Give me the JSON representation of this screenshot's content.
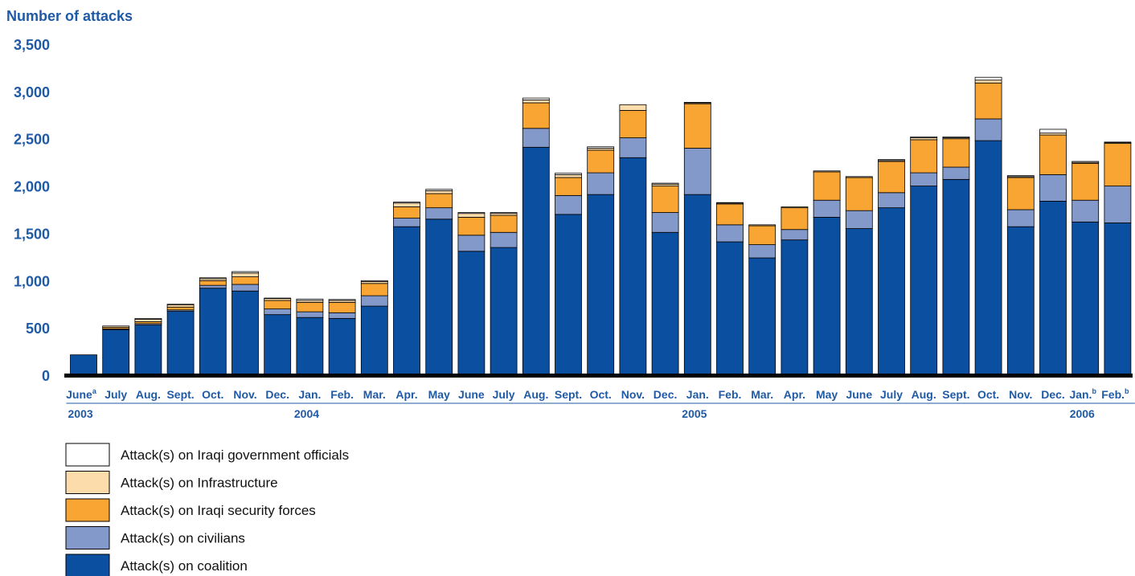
{
  "chart_data": {
    "type": "bar",
    "stacked": true,
    "ylabel": "Number of attacks",
    "ylim": [
      0,
      3500
    ],
    "yticks": [
      0,
      500,
      1000,
      1500,
      2000,
      2500,
      3000,
      3500
    ],
    "ytick_labels": [
      "0",
      "500",
      "1,000",
      "1,500",
      "2,000",
      "2,500",
      "3,000",
      "3,500"
    ],
    "categories": [
      "June",
      "July",
      "Aug.",
      "Sept.",
      "Oct.",
      "Nov.",
      "Dec.",
      "Jan.",
      "Feb.",
      "Mar.",
      "Apr.",
      "May",
      "June",
      "July",
      "Aug.",
      "Sept.",
      "Oct.",
      "Nov.",
      "Dec.",
      "Jan.",
      "Feb.",
      "Mar.",
      "Apr.",
      "May",
      "June",
      "July",
      "Aug.",
      "Sept.",
      "Oct.",
      "Nov.",
      "Dec.",
      "Jan.",
      "Feb."
    ],
    "category_notes": [
      "a",
      "",
      "",
      "",
      "",
      "",
      "",
      "",
      "",
      "",
      "",
      "",
      "",
      "",
      "",
      "",
      "",
      "",
      "",
      "",
      "",
      "",
      "",
      "",
      "",
      "",
      "",
      "",
      "",
      "",
      "",
      "b",
      "b"
    ],
    "year_groups": [
      {
        "label": "2003",
        "start": 0,
        "end": 6
      },
      {
        "label": "2004",
        "start": 7,
        "end": 18
      },
      {
        "label": "2005",
        "start": 19,
        "end": 30
      },
      {
        "label": "2006",
        "start": 31,
        "end": 32
      }
    ],
    "series": [
      {
        "name": "Attack(s) on coalition",
        "color": "#0b4fa1",
        "values": [
          215,
          480,
          530,
          675,
          920,
          890,
          640,
          610,
          600,
          730,
          1570,
          1650,
          1310,
          1350,
          2410,
          1700,
          1910,
          2300,
          1510,
          1910,
          1410,
          1240,
          1430,
          1670,
          1550,
          1770,
          2000,
          2070,
          2480,
          1570,
          1840,
          1620,
          1610
        ]
      },
      {
        "name": "Attack(s) on civilians",
        "color": "#8399c9",
        "values": [
          0,
          10,
          15,
          15,
          30,
          70,
          60,
          60,
          60,
          110,
          90,
          120,
          170,
          160,
          200,
          200,
          230,
          210,
          210,
          490,
          180,
          140,
          110,
          180,
          190,
          160,
          140,
          130,
          230,
          180,
          280,
          230,
          390
        ]
      },
      {
        "name": "Attack(s) on Iraqi security forces",
        "color": "#f9a533",
        "values": [
          0,
          15,
          20,
          30,
          50,
          80,
          90,
          100,
          110,
          130,
          120,
          150,
          190,
          180,
          270,
          190,
          240,
          290,
          280,
          470,
          220,
          200,
          230,
          300,
          350,
          330,
          350,
          300,
          380,
          340,
          420,
          390,
          450
        ]
      },
      {
        "name": "Attack(s) on Infrastructure",
        "color": "#fddcac",
        "values": [
          0,
          15,
          25,
          25,
          20,
          40,
          20,
          20,
          20,
          20,
          40,
          30,
          40,
          20,
          30,
          30,
          20,
          60,
          20,
          10,
          10,
          10,
          10,
          10,
          10,
          10,
          20,
          10,
          30,
          10,
          20,
          10,
          10
        ]
      },
      {
        "name": "Attack(s) on Iraqi government officials",
        "color": "#ffffff",
        "values": [
          0,
          0,
          10,
          5,
          10,
          15,
          5,
          15,
          10,
          10,
          10,
          15,
          10,
          10,
          20,
          15,
          15,
          0,
          10,
          5,
          5,
          0,
          0,
          0,
          0,
          10,
          10,
          10,
          30,
          10,
          40,
          10,
          5
        ]
      }
    ],
    "legend_order": [
      4,
      3,
      2,
      1,
      0
    ],
    "legend_position": "bottom-left"
  }
}
